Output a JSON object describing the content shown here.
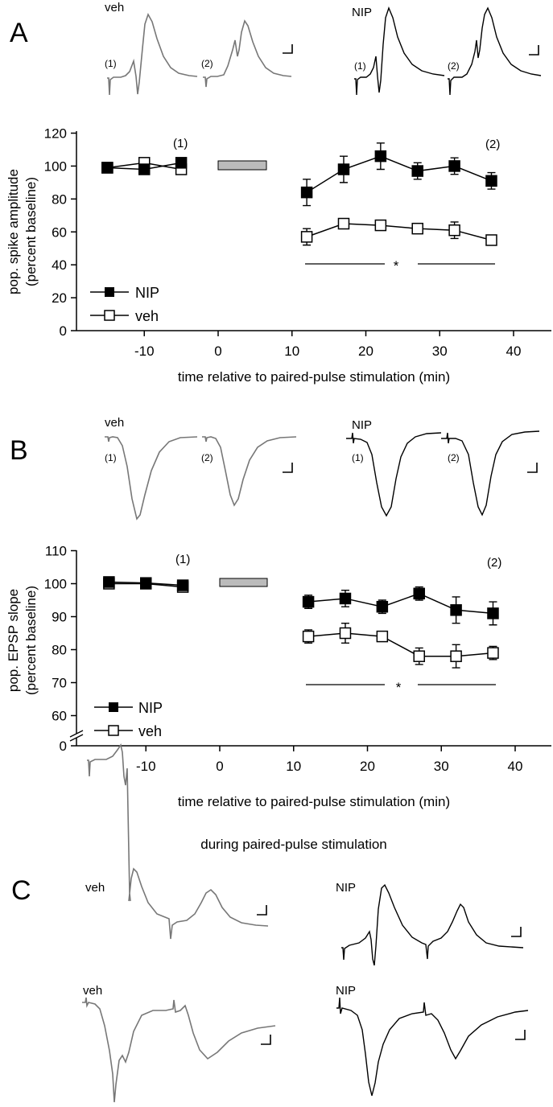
{
  "colors": {
    "veh_trace": "#777777",
    "nip_trace": "#000000",
    "stim_bar": "#bbbbbb",
    "axis": "#000000"
  },
  "panels": {
    "a": "A",
    "b": "B",
    "c": "C"
  },
  "traces": {
    "veh": "veh",
    "nip": "NIP",
    "label_1": "(1)",
    "label_2": "(2)"
  },
  "section_c_title": "during paired-pulse stimulation",
  "chart_data": [
    {
      "type": "line",
      "panel": "A",
      "xlabel": "time relative to paired-pulse stimulation (min)",
      "ylabel": "pop. spike amplitude",
      "ylabel2": "(percent baseline)",
      "xlim": [
        -17,
        47
      ],
      "ylim": [
        0,
        120
      ],
      "xticks": [
        -10,
        0,
        10,
        20,
        30,
        40
      ],
      "yticks": [
        0,
        20,
        40,
        60,
        80,
        100,
        120
      ],
      "annotations": {
        "label_1": "(1)",
        "label_2": "(2)",
        "significance": "*"
      },
      "stim_bar": {
        "x_start": 0,
        "x_end": 6.5,
        "y": 100
      },
      "series": [
        {
          "name": "NIP",
          "marker": "filled-square",
          "x": [
            -15,
            -10,
            -5,
            12,
            17,
            22,
            27,
            32,
            37
          ],
          "y": [
            99,
            98,
            102,
            84,
            98,
            106,
            97,
            100,
            91
          ],
          "err": [
            3,
            2,
            3,
            8,
            8,
            8,
            5,
            5,
            5
          ]
        },
        {
          "name": "veh",
          "marker": "open-square",
          "x": [
            -15,
            -10,
            -5,
            12,
            17,
            22,
            27,
            32,
            37
          ],
          "y": [
            99,
            102,
            98,
            57,
            65,
            64,
            62,
            61,
            55
          ],
          "err": [
            3,
            2,
            3,
            5,
            2,
            2,
            2,
            5,
            3
          ]
        }
      ]
    },
    {
      "type": "line",
      "panel": "B",
      "xlabel": "time relative to paired-pulse stimulation (min)",
      "ylabel": "pop. EPSP slope",
      "ylabel2": "(percent baseline)",
      "xlim": [
        -17,
        47
      ],
      "ylim": [
        55,
        110
      ],
      "axis_break": true,
      "xticks": [
        -10,
        0,
        10,
        20,
        30,
        40
      ],
      "yticks": [
        0,
        60,
        70,
        80,
        90,
        100,
        110
      ],
      "annotations": {
        "label_1": "(1)",
        "label_2": "(2)",
        "significance": "*"
      },
      "stim_bar": {
        "x_start": 0,
        "x_end": 6.5,
        "y": 100
      },
      "series": [
        {
          "name": "NIP",
          "marker": "filled-square",
          "x": [
            -15,
            -10,
            -5,
            12,
            17,
            22,
            27,
            32,
            37
          ],
          "y": [
            100.5,
            100.2,
            99.5,
            94.5,
            95.5,
            93,
            97,
            92,
            91
          ],
          "err": [
            1.5,
            1.0,
            1.5,
            2,
            2.5,
            2,
            2,
            4,
            3.5
          ]
        },
        {
          "name": "veh",
          "marker": "open-square",
          "x": [
            -15,
            -10,
            -5,
            12,
            17,
            22,
            27,
            32,
            37
          ],
          "y": [
            100,
            100,
            99,
            84,
            85,
            84,
            78,
            78,
            79
          ],
          "err": [
            1.5,
            1.0,
            1.5,
            2,
            3,
            1.5,
            2.5,
            3.5,
            2
          ]
        }
      ]
    }
  ]
}
